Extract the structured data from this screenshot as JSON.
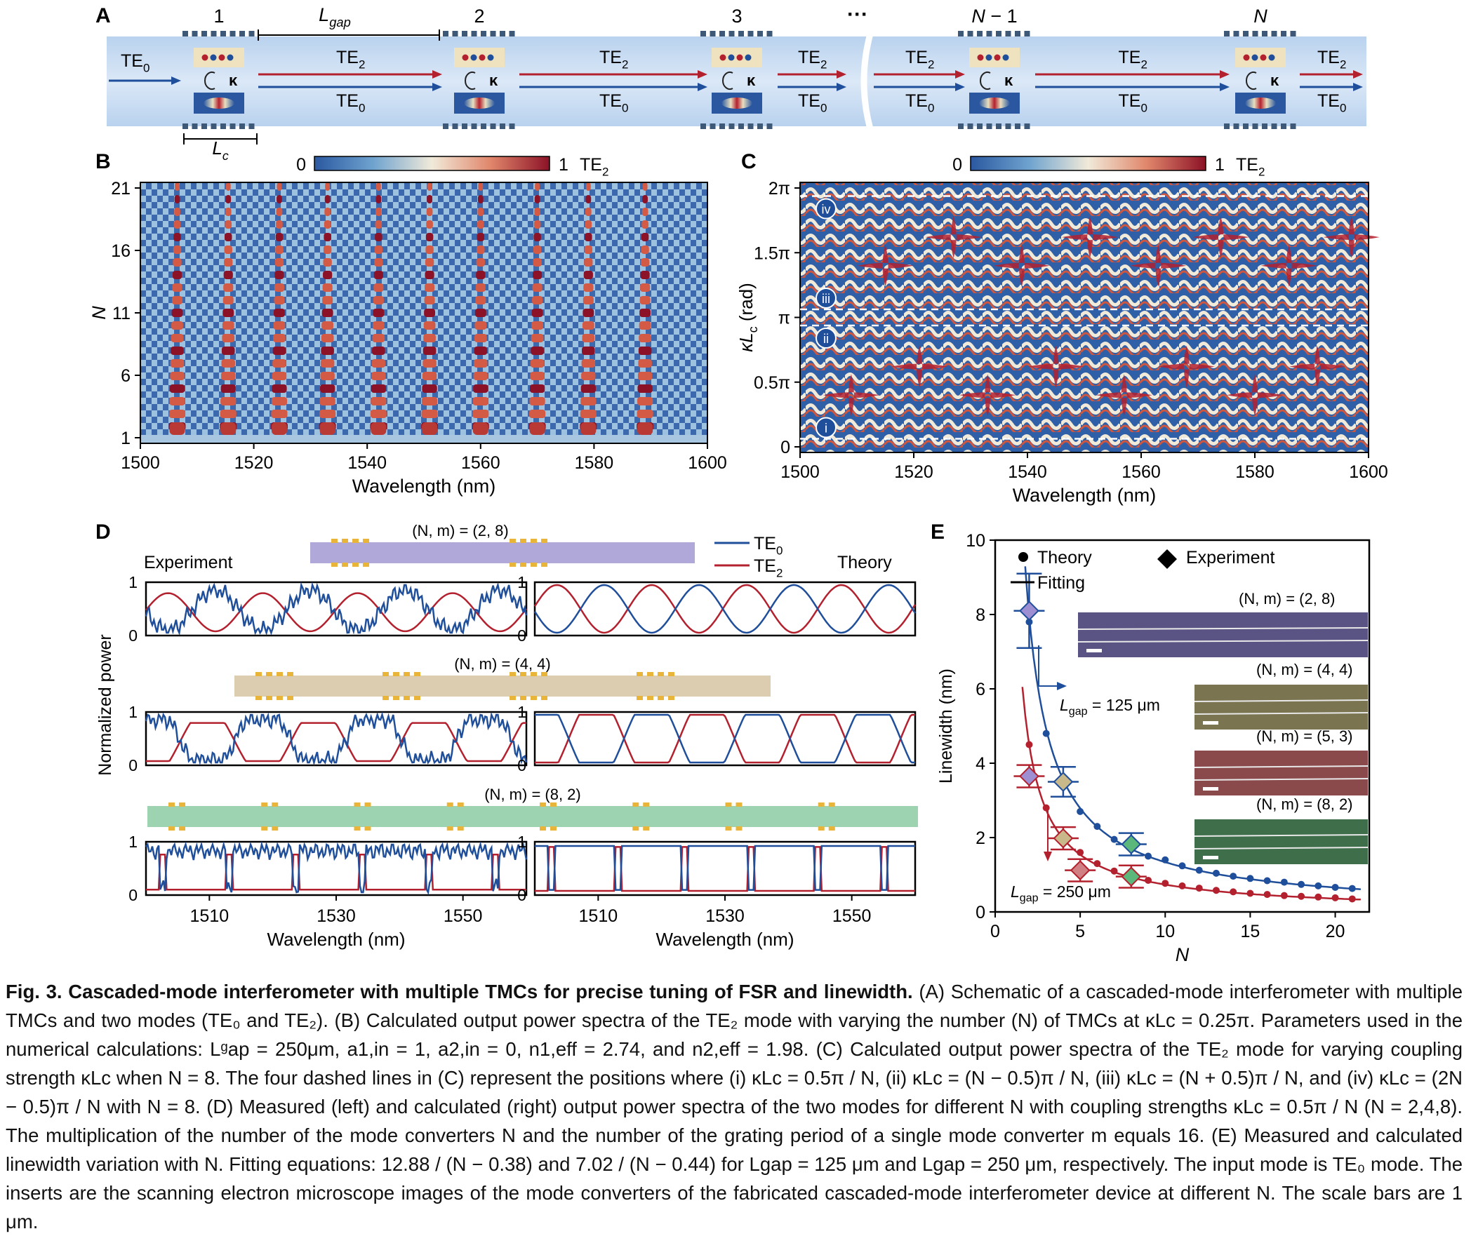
{
  "panel_letters": [
    "A",
    "B",
    "C",
    "D",
    "E"
  ],
  "panelA": {
    "converter_labels": [
      "1",
      "2",
      "3",
      "N − 1",
      "N"
    ],
    "ellipsis": "···",
    "lgap_label": "L",
    "lgap_sub": "gap",
    "lc_label": "L",
    "lc_sub": "c",
    "kappa": "κ",
    "input_label": "TE",
    "input_sub": "0",
    "te2": "TE",
    "te2_sub": "2",
    "te0": "TE",
    "te0_sub": "0"
  },
  "colorbar": {
    "min": "0",
    "max": "1",
    "label": "TE",
    "label_sub": "2"
  },
  "chart_data": [
    {
      "panel": "B",
      "type": "heatmap",
      "xlabel": "Wavelength (nm)",
      "ylabel": "N",
      "xlim": [
        1500,
        1600
      ],
      "ylim": [
        1,
        21
      ],
      "xticks": [
        "1500",
        "1520",
        "1540",
        "1560",
        "1580",
        "1600"
      ],
      "yticks": [
        "1",
        "6",
        "11",
        "16",
        "21"
      ],
      "colorbar_range": [
        0,
        1
      ],
      "bright_lines_nm": [
        1506.5,
        1515.5,
        1524.5,
        1533,
        1542,
        1551,
        1560,
        1570,
        1579,
        1589
      ]
    },
    {
      "panel": "C",
      "type": "heatmap",
      "xlabel": "Wavelength (nm)",
      "ylabel": "κL",
      "ylabel_sub": "c",
      "ylabel_unit": " (rad)",
      "xlim": [
        1500,
        1600
      ],
      "xticks": [
        "1500",
        "1520",
        "1540",
        "1560",
        "1580",
        "1600"
      ],
      "yticks": [
        "0",
        "0.5π",
        "π",
        "1.5π",
        "2π"
      ],
      "colorbar_range": [
        0,
        1
      ],
      "markers": [
        {
          "label": "i",
          "y_pi": 0.0625
        },
        {
          "label": "ii",
          "y_pi": 0.9375
        },
        {
          "label": "iii",
          "y_pi": 1.0625
        },
        {
          "label": "iv",
          "y_pi": 1.9375
        }
      ]
    },
    {
      "panel": "D",
      "type": "line",
      "xlabel": "Wavelength (nm)",
      "ylabel": "Normalized  power",
      "xlim": [
        1500,
        1560
      ],
      "xticks": [
        "1510",
        "1530",
        "1550"
      ],
      "yticks": [
        "0",
        "1"
      ],
      "left_title": "Experiment",
      "right_title": "Theory",
      "legend": [
        "TE0",
        "TE2"
      ],
      "rows": [
        {
          "title": "(N, m) = (2, 8)",
          "N": 2,
          "m": 8,
          "bar_color": "#b0a8d8"
        },
        {
          "title": "(N, m) = (4, 4)",
          "N": 4,
          "m": 4,
          "bar_color": "#dccdb0"
        },
        {
          "title": "(N, m) = (8, 2)",
          "N": 8,
          "m": 2,
          "bar_color": "#9ed3b2"
        }
      ]
    },
    {
      "panel": "E",
      "type": "scatter",
      "xlabel": "N",
      "ylabel": "Linewidth (nm)",
      "xlim": [
        0,
        22
      ],
      "ylim": [
        0,
        10
      ],
      "xticks": [
        "0",
        "5",
        "10",
        "15",
        "20"
      ],
      "yticks": [
        "0",
        "2",
        "4",
        "6",
        "8",
        "10"
      ],
      "legend": [
        "Theory",
        "Experiment",
        "Fitting"
      ],
      "annotation_125": "= 125 μm",
      "annotation_250": "= 250 μm",
      "series": [
        {
          "name": "L_gap = 125 μm",
          "color": "#1f4e9a",
          "fit_a": 12.88,
          "fit_b": 0.38,
          "theory_x": [
            2,
            3,
            4,
            5,
            6,
            7,
            8,
            9,
            10,
            11,
            12,
            13,
            14,
            15,
            16,
            17,
            18,
            19,
            20,
            21
          ],
          "theory_y": [
            7.8,
            4.8,
            3.4,
            2.7,
            2.3,
            1.95,
            1.7,
            1.5,
            1.4,
            1.24,
            1.12,
            1.04,
            0.96,
            0.9,
            0.84,
            0.8,
            0.74,
            0.7,
            0.66,
            0.63
          ],
          "experiment": [
            {
              "N": 2,
              "y": 8.1,
              "err": 1.0,
              "fill": "#9d8fd1"
            },
            {
              "N": 4,
              "y": 3.5,
              "err": 0.4,
              "fill": "#c9b98a"
            },
            {
              "N": 8,
              "y": 1.82,
              "err": 0.3,
              "fill": "#5bb77a"
            }
          ]
        },
        {
          "name": "L_gap = 250 μm",
          "color": "#b3202e",
          "fit_a": 7.02,
          "fit_b": 0.44,
          "theory_x": [
            2,
            3,
            4,
            5,
            6,
            7,
            8,
            9,
            10,
            11,
            12,
            13,
            14,
            15,
            16,
            17,
            18,
            19,
            20,
            21
          ],
          "theory_y": [
            4.5,
            2.8,
            2.0,
            1.6,
            1.3,
            1.1,
            0.95,
            0.85,
            0.77,
            0.7,
            0.64,
            0.58,
            0.54,
            0.5,
            0.47,
            0.44,
            0.42,
            0.4,
            0.38,
            0.35
          ],
          "experiment": [
            {
              "N": 2,
              "y": 3.65,
              "err": 0.3,
              "fill": "#9d8fd1"
            },
            {
              "N": 4,
              "y": 1.98,
              "err": 0.3,
              "fill": "#c9b98a"
            },
            {
              "N": 5,
              "y": 1.12,
              "err": 0.3,
              "fill": "#d07f82"
            },
            {
              "N": 8,
              "y": 0.95,
              "err": 0.3,
              "fill": "#5bb77a"
            }
          ]
        }
      ],
      "insets": [
        "(N, m) = (2, 8)",
        "(N, m) = (4, 4)",
        "(N, m) = (5, 3)",
        "(N, m) = (8, 2)"
      ]
    }
  ],
  "caption": {
    "fig": "Fig. 3.",
    "title": " Cascaded-mode interferometer with multiple TMCs for precise tuning of FSR and linewidth.",
    "body": " (A) Schematic of a cascaded-mode interferometer with multiple TMCs and two modes (TE₀ and TE₂). (B) Calculated output power spectra of the TE₂ mode with varying the number (N) of TMCs at κLᴄ = 0.25π. Parameters used in the numerical calculations: Lᵍap = 250μm, a1,in = 1, a2,in = 0, n1,eff = 2.74, and n2,eff = 1.98. (C) Calculated output power spectra of the TE₂ mode for varying coupling strength κLc when N = 8. The four dashed lines in (C) represent the positions where (i) κLc = 0.5π / N, (ii) κLc = (N − 0.5)π / N, (iii) κLc = (N + 0.5)π / N, and (iv) κLc = (2N − 0.5)π / N with N = 8. (D) Measured (left) and calculated (right) output power spectra of the two modes for different N with coupling strengths κLc = 0.5π / N (N = 2,4,8). The multiplication of the number of the mode converters N and the number of the grating period of a single mode converter m equals 16. (E) Measured and calculated linewidth variation with N. Fitting equations: 12.88 / (N − 0.38) and 7.02 / (N − 0.44) for Lgap = 125 μm and Lgap = 250 μm, respectively. The input mode is TE₀ mode. The inserts are the scanning electron microscope images of the mode converters of the fabricated cascaded-mode interferometer device at different N. The scale bars are 1 μm."
  },
  "colors": {
    "blue": "#1f4e9a",
    "red": "#b3202e",
    "waveguide": "#c5d9ef"
  }
}
